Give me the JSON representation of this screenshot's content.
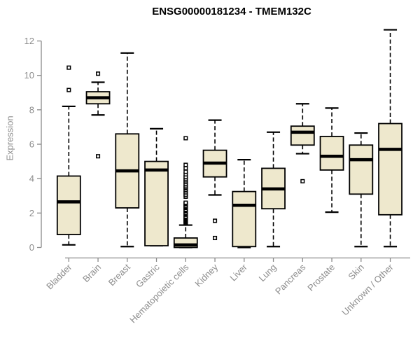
{
  "chart_data": {
    "type": "boxplot",
    "title": "ENSG00000181234 - TMEM132C",
    "ylabel": "Expression",
    "xlabel": "",
    "ylim": [
      0,
      12.75
    ],
    "yticks": [
      0,
      2,
      4,
      6,
      8,
      10,
      12
    ],
    "grid": false,
    "legend": "none",
    "categories": [
      "Bladder",
      "Brain",
      "Breast",
      "Gastric",
      "Hematopoietic cells",
      "Kidney",
      "Liver",
      "Lung",
      "Pancreas",
      "Prostate",
      "Skin",
      "Unknown / Other"
    ],
    "series": [
      {
        "category": "Bladder",
        "low": 0.15,
        "q1": 0.75,
        "median": 2.65,
        "q3": 4.15,
        "high": 8.2,
        "outliers": [
          9.15,
          10.45
        ]
      },
      {
        "category": "Brain",
        "low": 7.7,
        "q1": 8.35,
        "median": 8.7,
        "q3": 9.05,
        "high": 9.6,
        "outliers": [
          5.3,
          10.1
        ]
      },
      {
        "category": "Breast",
        "low": 0.05,
        "q1": 2.3,
        "median": 4.45,
        "q3": 6.6,
        "high": 11.3,
        "outliers": []
      },
      {
        "category": "Gastric",
        "low": 0.1,
        "q1": 0.1,
        "median": 4.5,
        "q3": 5.0,
        "high": 6.9,
        "outliers": []
      },
      {
        "category": "Hematopoietic cells",
        "low": 0.0,
        "q1": 0.0,
        "median": 0.15,
        "q3": 0.55,
        "high": 1.3,
        "outliers": [
          1.4,
          1.45,
          1.5,
          1.55,
          1.6,
          1.65,
          1.7,
          1.75,
          1.8,
          1.9,
          1.95,
          2.0,
          2.1,
          2.15,
          2.2,
          2.3,
          2.35,
          2.4,
          2.5,
          2.55,
          2.6,
          2.95,
          3.05,
          3.15,
          3.25,
          3.35,
          3.45,
          3.5,
          3.6,
          3.7,
          3.8,
          3.9,
          4.0,
          4.1,
          4.25,
          4.4,
          4.6,
          4.8,
          6.35
        ]
      },
      {
        "category": "Kidney",
        "low": 3.05,
        "q1": 4.1,
        "median": 4.9,
        "q3": 5.65,
        "high": 7.4,
        "outliers": [
          1.55,
          0.55
        ]
      },
      {
        "category": "Liver",
        "low": 0.0,
        "q1": 0.05,
        "median": 2.45,
        "q3": 3.25,
        "high": 5.1,
        "outliers": []
      },
      {
        "category": "Lung",
        "low": 0.05,
        "q1": 2.25,
        "median": 3.4,
        "q3": 4.6,
        "high": 6.7,
        "outliers": []
      },
      {
        "category": "Pancreas",
        "low": 5.45,
        "q1": 5.95,
        "median": 6.7,
        "q3": 7.05,
        "high": 8.35,
        "outliers": [
          3.85
        ]
      },
      {
        "category": "Prostate",
        "low": 2.05,
        "q1": 4.5,
        "median": 5.3,
        "q3": 6.45,
        "high": 8.1,
        "outliers": []
      },
      {
        "category": "Skin",
        "low": 0.05,
        "q1": 3.1,
        "median": 5.1,
        "q3": 5.95,
        "high": 6.65,
        "outliers": []
      },
      {
        "category": "Unknown / Other",
        "low": 0.05,
        "q1": 1.9,
        "median": 5.7,
        "q3": 7.2,
        "high": 12.65,
        "outliers": []
      }
    ],
    "colors": {
      "box_fill": "#EEE8CD",
      "box_border": "#000000",
      "median": "#000000",
      "whisker": "#000000",
      "axis": "#8a8a8a",
      "label_text": "#8c8c8c",
      "title_text": "#000000",
      "background": "#ffffff"
    }
  }
}
